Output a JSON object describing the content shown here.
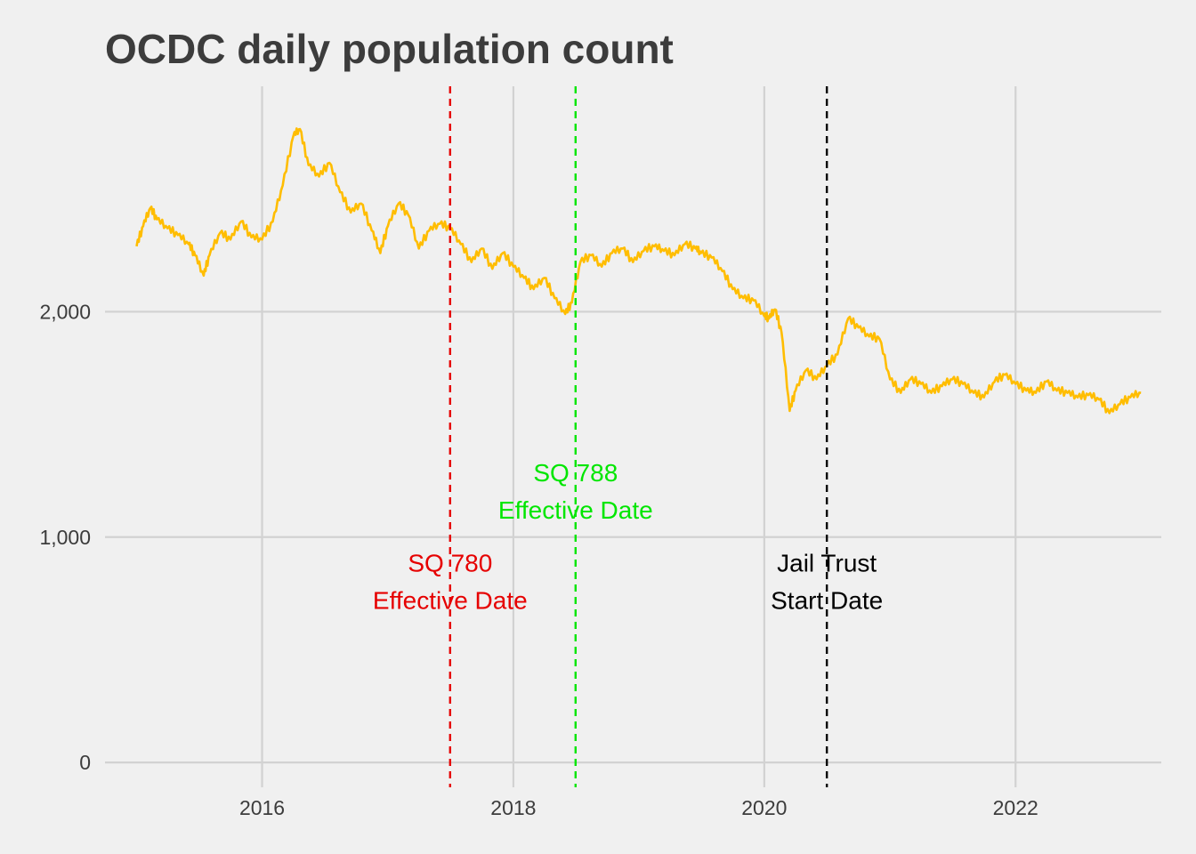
{
  "chart_data": {
    "type": "line",
    "title": "OCDC daily population count",
    "xlabel": "",
    "ylabel": "",
    "x_ticks": [
      "2016",
      "2018",
      "2020",
      "2022"
    ],
    "y_ticks": [
      "0",
      "1,000",
      "2,000"
    ],
    "xlim": [
      "2014-10-01",
      "2023-03-01"
    ],
    "ylim": [
      -110,
      3000
    ],
    "grid": true,
    "legend": "none",
    "series": [
      {
        "color": "#FFBD00",
        "x_unit": "date",
        "points": [
          [
            "2015-01-01",
            2290
          ],
          [
            "2015-01-20",
            2380
          ],
          [
            "2015-02-10",
            2460
          ],
          [
            "2015-03-01",
            2410
          ],
          [
            "2015-04-01",
            2370
          ],
          [
            "2015-05-01",
            2340
          ],
          [
            "2015-06-01",
            2300
          ],
          [
            "2015-06-20",
            2250
          ],
          [
            "2015-07-15",
            2160
          ],
          [
            "2015-08-01",
            2250
          ],
          [
            "2015-09-01",
            2350
          ],
          [
            "2015-10-01",
            2320
          ],
          [
            "2015-11-01",
            2400
          ],
          [
            "2015-12-01",
            2330
          ],
          [
            "2016-01-01",
            2320
          ],
          [
            "2016-02-01",
            2400
          ],
          [
            "2016-03-01",
            2560
          ],
          [
            "2016-04-01",
            2780
          ],
          [
            "2016-04-20",
            2810
          ],
          [
            "2016-05-15",
            2650
          ],
          [
            "2016-06-15",
            2600
          ],
          [
            "2016-07-15",
            2660
          ],
          [
            "2016-08-15",
            2530
          ],
          [
            "2016-09-15",
            2440
          ],
          [
            "2016-10-15",
            2480
          ],
          [
            "2016-11-15",
            2360
          ],
          [
            "2016-12-10",
            2260
          ],
          [
            "2017-01-01",
            2380
          ],
          [
            "2017-02-01",
            2480
          ],
          [
            "2017-03-01",
            2430
          ],
          [
            "2017-04-01",
            2280
          ],
          [
            "2017-05-01",
            2360
          ],
          [
            "2017-06-01",
            2390
          ],
          [
            "2017-07-01",
            2370
          ],
          [
            "2017-08-01",
            2300
          ],
          [
            "2017-09-01",
            2220
          ],
          [
            "2017-10-01",
            2280
          ],
          [
            "2017-11-01",
            2190
          ],
          [
            "2017-12-01",
            2260
          ],
          [
            "2018-01-01",
            2200
          ],
          [
            "2018-02-01",
            2150
          ],
          [
            "2018-03-01",
            2100
          ],
          [
            "2018-04-01",
            2150
          ],
          [
            "2018-05-01",
            2060
          ],
          [
            "2018-06-01",
            1990
          ],
          [
            "2018-06-20",
            2040
          ],
          [
            "2018-07-15",
            2220
          ],
          [
            "2018-08-15",
            2250
          ],
          [
            "2018-09-15",
            2200
          ],
          [
            "2018-10-15",
            2260
          ],
          [
            "2018-11-15",
            2280
          ],
          [
            "2018-12-15",
            2220
          ],
          [
            "2019-01-15",
            2270
          ],
          [
            "2019-02-15",
            2290
          ],
          [
            "2019-03-15",
            2270
          ],
          [
            "2019-04-15",
            2250
          ],
          [
            "2019-05-15",
            2300
          ],
          [
            "2019-06-15",
            2280
          ],
          [
            "2019-07-01",
            2260
          ],
          [
            "2019-08-01",
            2240
          ],
          [
            "2019-09-01",
            2180
          ],
          [
            "2019-10-01",
            2100
          ],
          [
            "2019-11-01",
            2060
          ],
          [
            "2019-12-01",
            2050
          ],
          [
            "2020-01-01",
            1980
          ],
          [
            "2020-01-15",
            1970
          ],
          [
            "2020-02-01",
            2010
          ],
          [
            "2020-02-20",
            1910
          ],
          [
            "2020-03-15",
            1560
          ],
          [
            "2020-04-01",
            1650
          ],
          [
            "2020-05-01",
            1740
          ],
          [
            "2020-06-01",
            1700
          ],
          [
            "2020-07-01",
            1760
          ],
          [
            "2020-08-01",
            1810
          ],
          [
            "2020-09-01",
            1970
          ],
          [
            "2020-10-01",
            1930
          ],
          [
            "2020-11-01",
            1890
          ],
          [
            "2020-12-01",
            1880
          ],
          [
            "2021-01-01",
            1700
          ],
          [
            "2021-02-01",
            1640
          ],
          [
            "2021-03-01",
            1700
          ],
          [
            "2021-04-01",
            1680
          ],
          [
            "2021-05-01",
            1640
          ],
          [
            "2021-06-01",
            1670
          ],
          [
            "2021-07-01",
            1700
          ],
          [
            "2021-08-01",
            1680
          ],
          [
            "2021-09-01",
            1640
          ],
          [
            "2021-10-01",
            1620
          ],
          [
            "2021-11-01",
            1690
          ],
          [
            "2021-12-01",
            1720
          ],
          [
            "2022-01-01",
            1680
          ],
          [
            "2022-02-01",
            1650
          ],
          [
            "2022-03-01",
            1640
          ],
          [
            "2022-04-01",
            1690
          ],
          [
            "2022-05-01",
            1650
          ],
          [
            "2022-06-01",
            1640
          ],
          [
            "2022-07-01",
            1620
          ],
          [
            "2022-08-01",
            1630
          ],
          [
            "2022-09-01",
            1610
          ],
          [
            "2022-10-01",
            1550
          ],
          [
            "2022-11-01",
            1590
          ],
          [
            "2022-12-01",
            1620
          ],
          [
            "2023-01-01",
            1640
          ]
        ]
      }
    ],
    "annotations": [
      {
        "date": "2017-07-01",
        "label_line1": "SQ 780",
        "label_line2": "Effective Date",
        "color": "#E60000",
        "label_y": 800
      },
      {
        "date": "2018-07-01",
        "label_line1": "SQ 788",
        "label_line2": "Effective Date",
        "color": "#00E600",
        "label_y": 1200
      },
      {
        "date": "2020-07-01",
        "label_line1": "Jail Trust",
        "label_line2": "Start Date",
        "color": "#000000",
        "label_y": 800
      }
    ]
  }
}
